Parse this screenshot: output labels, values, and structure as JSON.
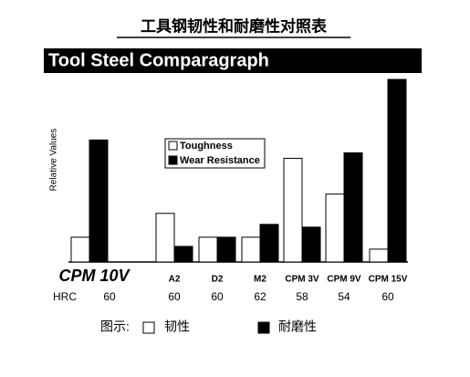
{
  "chart_data": {
    "type": "bar",
    "title": "工具钢韧性和耐磨性对照表",
    "subtitle": "Tool Steel Comparagraph",
    "y_label": "Relative Values",
    "categories": [
      "CPM 10V",
      "A2",
      "D2",
      "M2",
      "CPM 3V",
      "CPM 9V",
      "CPM 15V"
    ],
    "series": [
      {
        "name": "Toughness",
        "color": "#ffffff",
        "values": [
          27,
          53,
          27,
          27,
          113,
          74,
          14
        ]
      },
      {
        "name": "Wear Resistance",
        "color": "#000000",
        "values": [
          133,
          17,
          27,
          41,
          38,
          119,
          199
        ]
      }
    ],
    "ylim": [
      0,
      200
    ],
    "hrc": {
      "label": "HRC",
      "values": [
        60,
        60,
        60,
        62,
        58,
        54,
        60
      ]
    },
    "bottom_legend": {
      "label": "图示:",
      "items": [
        "韧性",
        "耐磨性"
      ]
    }
  }
}
